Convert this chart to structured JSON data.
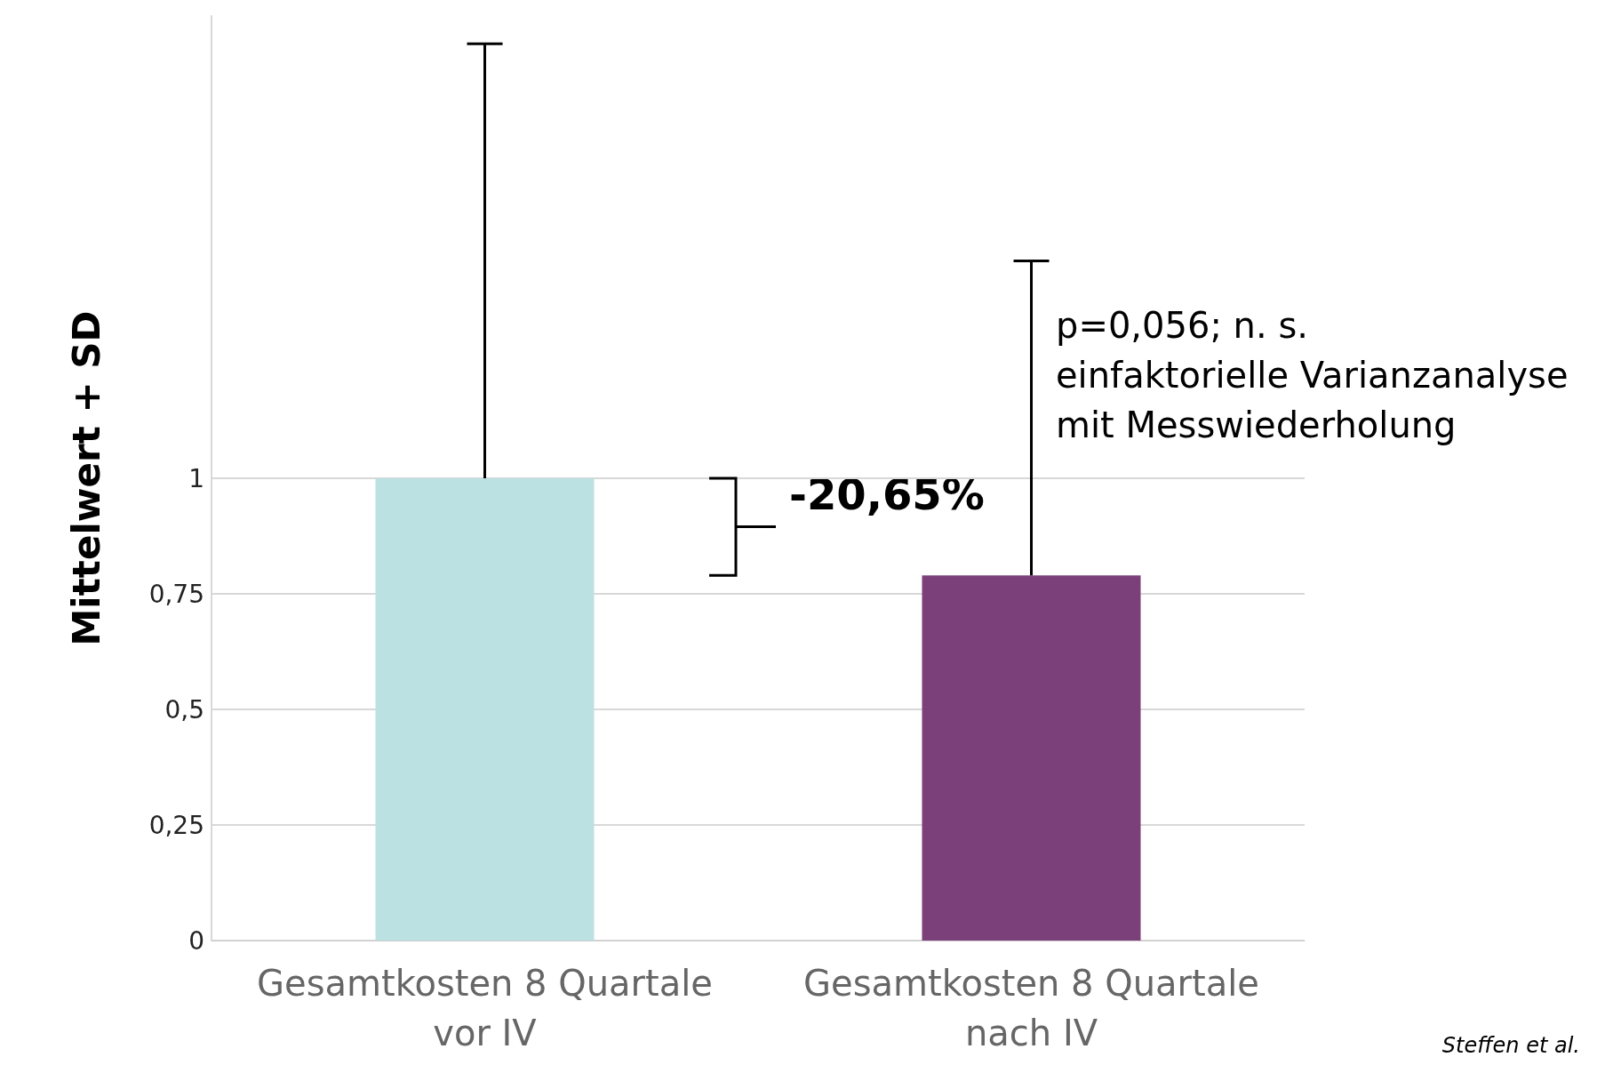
{
  "chart_data": {
    "type": "bar",
    "categories": [
      "Gesamtkosten 8 Quartale\nvor IV",
      "Gesamtkosten 8 Quartale\nnach IV"
    ],
    "values": [
      1.0,
      0.79
    ],
    "colors": [
      "#bce1e2",
      "#7b3f7a"
    ],
    "errors": [
      [
        1.0,
        1.94
      ],
      [
        0.79,
        1.47
      ]
    ],
    "ylabel": "Mittelwert + SD",
    "ylim": [
      0,
      2
    ],
    "yticks": [
      0,
      {
        "value": 0.25,
        "label": "0,25"
      },
      {
        "value": 0.5,
        "label": "0,5"
      },
      {
        "value": 0.75,
        "label": "0,75"
      },
      1
    ],
    "grid": "y",
    "annotations": [
      "-20,65%",
      "p=0,056; n. s.\neinfaktorielle Varianzanalyse\nmit Messwiederholung",
      "Steffen et al."
    ]
  }
}
